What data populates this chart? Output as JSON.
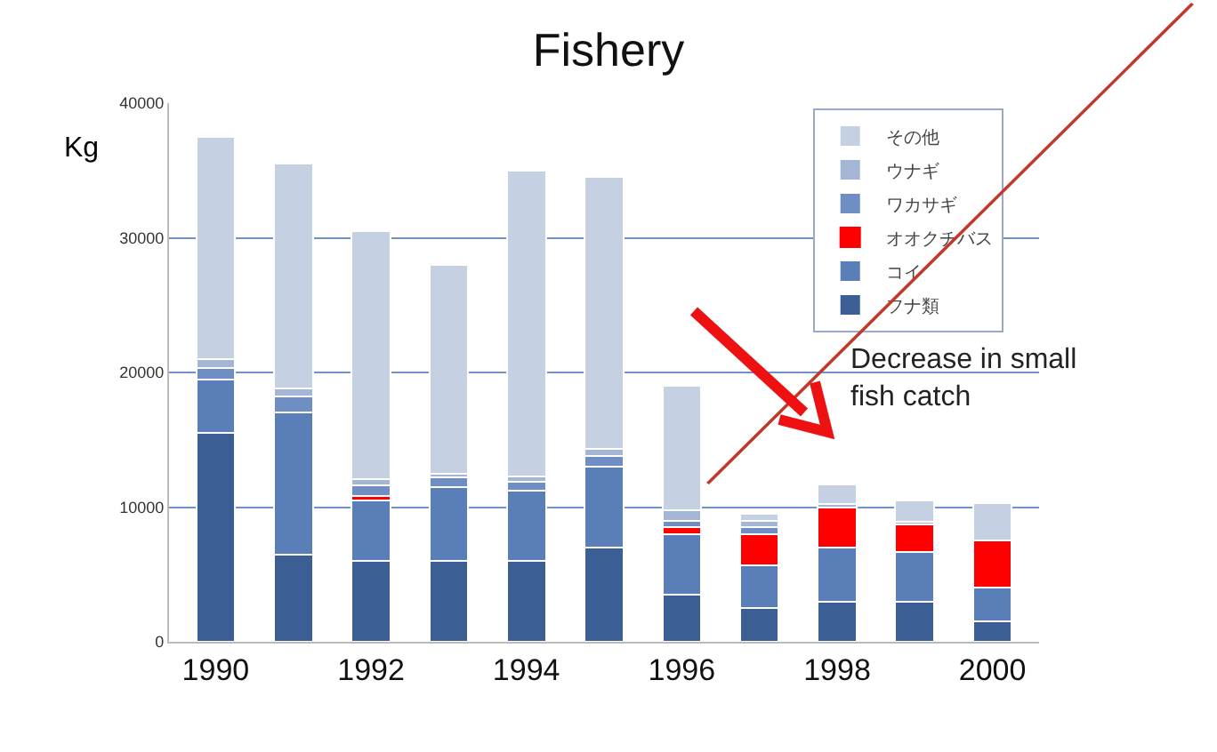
{
  "chart_data": {
    "type": "bar",
    "title": "Fishery",
    "ylabel": "Kg",
    "stacked": true,
    "categories": [
      "1990",
      null,
      "1992",
      null,
      "1994",
      null,
      "1996",
      null,
      "1998",
      null,
      "2000"
    ],
    "series": [
      {
        "name": "フナ類",
        "color": "#3b5f95",
        "values": [
          15500,
          6500,
          6000,
          6000,
          6000,
          7000,
          3500,
          2500,
          3000,
          3000,
          1500
        ]
      },
      {
        "name": "コイ",
        "color": "#5a7fb8",
        "values": [
          4000,
          10500,
          4500,
          5500,
          5200,
          6000,
          4500,
          3200,
          4000,
          3700,
          2500
        ]
      },
      {
        "name": "オオクチバス",
        "color": "#ff0000",
        "values": [
          0,
          0,
          300,
          0,
          0,
          0,
          500,
          2300,
          3000,
          2000,
          3500
        ]
      },
      {
        "name": "ワカサギ",
        "color": "#6f8fc4",
        "values": [
          800,
          1200,
          800,
          700,
          700,
          800,
          500,
          500,
          0,
          0,
          0
        ]
      },
      {
        "name": "ウナギ",
        "color": "#a3b6d6",
        "values": [
          700,
          600,
          500,
          300,
          400,
          500,
          800,
          500,
          200,
          200,
          0
        ]
      },
      {
        "name": "その他",
        "color": "#c5d0e3",
        "values": [
          16500,
          16700,
          18400,
          15500,
          22700,
          20200,
          9200,
          500,
          1500,
          1600,
          2800
        ]
      }
    ],
    "ylim": [
      0,
      40000
    ],
    "yticks": [
      0,
      10000,
      20000,
      30000,
      40000
    ],
    "grid": "y",
    "legend": "top right",
    "annotations": [
      "Decrease in small fish catch"
    ]
  }
}
